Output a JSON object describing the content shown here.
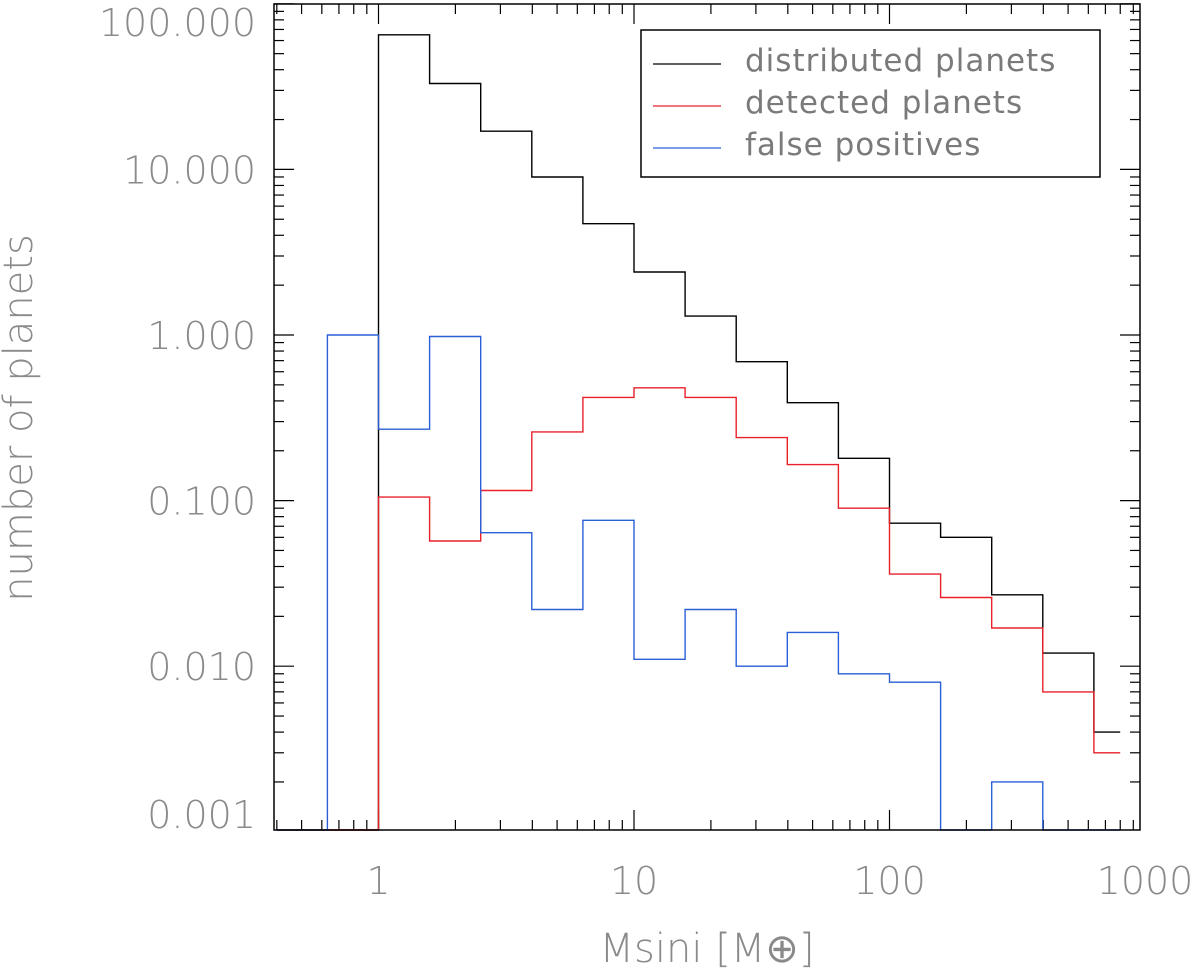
{
  "chart_data": {
    "type": "line",
    "step": true,
    "title": "",
    "xlabel": "Msini [M⊕]",
    "ylabel": "number of planets",
    "x_scale": "log",
    "y_scale": "log",
    "xlim": [
      0.4,
      900
    ],
    "ylim": [
      0.001,
      130
    ],
    "x_ticks": [
      1,
      10,
      100,
      1000
    ],
    "x_tick_labels": [
      "1",
      "10",
      "100",
      "1000"
    ],
    "y_ticks": [
      0.001,
      0.01,
      0.1,
      1,
      10,
      100
    ],
    "y_tick_labels": [
      "0.001",
      "0.010",
      "0.100",
      "1.000",
      "10.000",
      "100.000"
    ],
    "bin_edges": [
      0.4,
      0.631,
      1.0,
      1.585,
      2.512,
      3.981,
      6.31,
      10.0,
      15.85,
      25.12,
      39.81,
      63.1,
      100.0,
      158.5,
      251.2,
      398.1,
      631.0,
      800.0
    ],
    "series": [
      {
        "name": "distributed planets",
        "color": "#000000",
        "values": [
          0.001,
          0.001,
          65,
          33,
          17,
          9,
          4.7,
          2.4,
          1.3,
          0.69,
          0.39,
          0.18,
          0.073,
          0.06,
          0.027,
          0.012,
          0.004
        ]
      },
      {
        "name": "detected planets",
        "color": "#e8202a",
        "values": [
          0.001,
          0.001,
          0.105,
          0.057,
          0.115,
          0.26,
          0.42,
          0.48,
          0.42,
          0.24,
          0.165,
          0.09,
          0.036,
          0.026,
          0.017,
          0.007,
          0.003
        ]
      },
      {
        "name": "false positives",
        "color": "#2a5fd6",
        "values": [
          0.001,
          1.0,
          0.27,
          0.98,
          0.064,
          0.022,
          0.076,
          0.011,
          0.022,
          0.01,
          0.016,
          0.009,
          0.008,
          0.001,
          0.002,
          0.001,
          0.001
        ]
      }
    ],
    "legend": {
      "position": "top-right",
      "entries": [
        "distributed planets",
        "detected planets",
        "false positives"
      ]
    },
    "grid": false
  }
}
